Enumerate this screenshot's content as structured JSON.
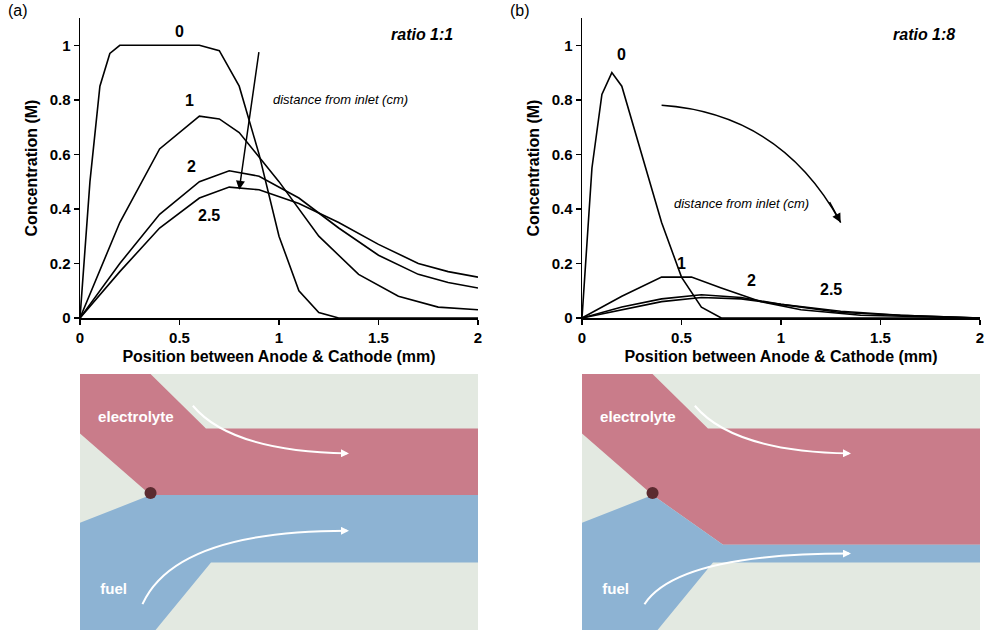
{
  "chart_data": [
    {
      "type": "line",
      "panel": "(a)",
      "title": "ratio 1:1",
      "x_label": "Position between Anode & Cathode (mm)",
      "y_label": "Concentration (M)",
      "annotation": "distance from inlet (cm)",
      "xlim": [
        0,
        2
      ],
      "xticks": [
        0,
        0.5,
        1,
        1.5,
        2
      ],
      "ylim": [
        0,
        1.1
      ],
      "yticks": [
        0,
        0.2,
        0.4,
        0.6,
        0.8,
        1
      ],
      "grid": false,
      "series": [
        {
          "name": "0",
          "color": "#000000",
          "x": [
            0,
            0.05,
            0.1,
            0.15,
            0.2,
            0.6,
            0.7,
            0.8,
            0.9,
            1.0,
            1.1,
            1.2,
            1.3,
            2
          ],
          "values": [
            0,
            0.5,
            0.85,
            0.97,
            1,
            1,
            0.98,
            0.85,
            0.6,
            0.3,
            0.1,
            0.02,
            0,
            0
          ]
        },
        {
          "name": "1",
          "color": "#000000",
          "x": [
            0,
            0.2,
            0.4,
            0.6,
            0.7,
            0.8,
            1.0,
            1.2,
            1.4,
            1.6,
            1.8,
            2
          ],
          "values": [
            0,
            0.35,
            0.62,
            0.74,
            0.73,
            0.68,
            0.5,
            0.3,
            0.16,
            0.08,
            0.04,
            0.03
          ]
        },
        {
          "name": "2",
          "color": "#000000",
          "x": [
            0,
            0.2,
            0.4,
            0.6,
            0.75,
            0.9,
            1.1,
            1.3,
            1.5,
            1.7,
            1.85,
            2
          ],
          "values": [
            0,
            0.2,
            0.38,
            0.5,
            0.54,
            0.52,
            0.44,
            0.33,
            0.23,
            0.16,
            0.13,
            0.11
          ]
        },
        {
          "name": "2.5",
          "color": "#000000",
          "x": [
            0,
            0.2,
            0.4,
            0.6,
            0.75,
            0.9,
            1.1,
            1.3,
            1.5,
            1.7,
            1.85,
            2
          ],
          "values": [
            0,
            0.17,
            0.33,
            0.44,
            0.48,
            0.47,
            0.42,
            0.35,
            0.27,
            0.2,
            0.17,
            0.15
          ]
        }
      ]
    },
    {
      "type": "line",
      "panel": "(b)",
      "title": "ratio 1:8",
      "x_label": "Position between Anode & Cathode (mm)",
      "y_label": "Concentration (M)",
      "annotation": "distance from inlet (cm)",
      "xlim": [
        0,
        2
      ],
      "xticks": [
        0,
        0.5,
        1,
        1.5,
        2
      ],
      "ylim": [
        0,
        1.1
      ],
      "yticks": [
        0,
        0.2,
        0.4,
        0.6,
        0.8,
        1
      ],
      "grid": false,
      "series": [
        {
          "name": "0",
          "color": "#000000",
          "x": [
            0,
            0.05,
            0.1,
            0.15,
            0.2,
            0.3,
            0.4,
            0.5,
            0.6,
            0.7,
            2
          ],
          "values": [
            0,
            0.55,
            0.82,
            0.9,
            0.85,
            0.6,
            0.35,
            0.15,
            0.04,
            0,
            0
          ]
        },
        {
          "name": "1",
          "color": "#000000",
          "x": [
            0,
            0.2,
            0.4,
            0.55,
            0.7,
            0.9,
            1.1,
            1.4,
            2
          ],
          "values": [
            0,
            0.08,
            0.15,
            0.15,
            0.11,
            0.06,
            0.03,
            0.01,
            0
          ]
        },
        {
          "name": "2",
          "color": "#000000",
          "x": [
            0,
            0.2,
            0.4,
            0.6,
            0.8,
            1.0,
            1.3,
            1.6,
            2
          ],
          "values": [
            0,
            0.04,
            0.07,
            0.085,
            0.075,
            0.05,
            0.02,
            0.01,
            0
          ]
        },
        {
          "name": "2.5",
          "color": "#000000",
          "x": [
            0,
            0.2,
            0.4,
            0.6,
            0.8,
            1.0,
            1.3,
            1.6,
            2
          ],
          "values": [
            0,
            0.03,
            0.06,
            0.075,
            0.07,
            0.05,
            0.025,
            0.01,
            0
          ]
        }
      ]
    }
  ],
  "photos": [
    {
      "top_label": "electrolyte",
      "bottom_label": "fuel"
    },
    {
      "top_label": "electrolyte",
      "bottom_label": "fuel"
    }
  ]
}
